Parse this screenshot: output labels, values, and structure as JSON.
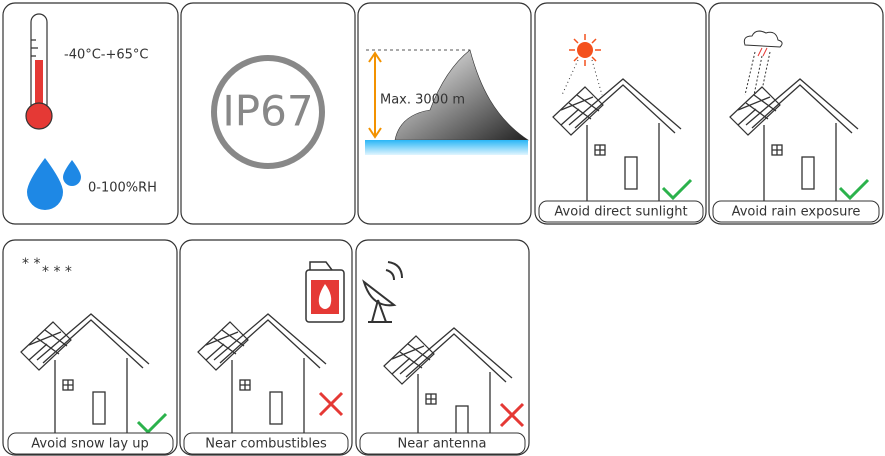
{
  "panels": [
    {
      "temperature": "-40°C-+65°C",
      "humidity": "0-100%RH"
    },
    {
      "label": "IP67"
    },
    {
      "label": "Max. 3000 m"
    },
    {
      "label": "Avoid direct sunlight"
    },
    {
      "label": "Avoid rain exposure"
    },
    {
      "label": "Avoid snow lay up"
    },
    {
      "label": "Near combustibles"
    },
    {
      "label": "Near antenna"
    }
  ]
}
